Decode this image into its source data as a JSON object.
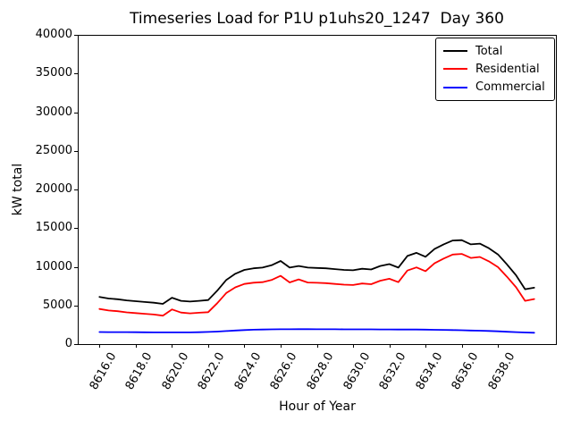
{
  "chart_data": {
    "type": "line",
    "title": "Timeseries Load for P1U p1uhs20_1247  Day 360",
    "xlabel": "Hour of Year",
    "ylabel": "kW total",
    "xlim": [
      8614.8,
      8641.2
    ],
    "ylim": [
      0,
      40000
    ],
    "grid": false,
    "legend": {
      "position": "upper right"
    },
    "xticks": {
      "rotation_deg": 60,
      "values": [
        8616,
        8618,
        8620,
        8622,
        8624,
        8626,
        8628,
        8630,
        8632,
        8634,
        8636,
        8638
      ],
      "labels": [
        "8616.0",
        "8618.0",
        "8620.0",
        "8622.0",
        "8624.0",
        "8626.0",
        "8628.0",
        "8630.0",
        "8632.0",
        "8634.0",
        "8636.0",
        "8638.0"
      ]
    },
    "yticks": {
      "values": [
        0,
        5000,
        10000,
        15000,
        20000,
        25000,
        30000,
        35000,
        40000
      ],
      "labels": [
        "0",
        "5000",
        "10000",
        "15000",
        "20000",
        "25000",
        "30000",
        "35000",
        "40000"
      ]
    },
    "x": [
      8616.0,
      8616.5,
      8617.0,
      8617.5,
      8618.0,
      8618.5,
      8619.0,
      8619.5,
      8620.0,
      8620.5,
      8621.0,
      8621.5,
      8622.0,
      8622.5,
      8623.0,
      8623.5,
      8624.0,
      8624.5,
      8625.0,
      8625.5,
      8626.0,
      8626.5,
      8627.0,
      8627.5,
      8628.0,
      8628.5,
      8629.0,
      8629.5,
      8630.0,
      8630.5,
      8631.0,
      8631.5,
      8632.0,
      8632.5,
      8633.0,
      8633.5,
      8634.0,
      8634.5,
      8635.0,
      8635.5,
      8636.0,
      8636.5,
      8637.0,
      8637.5,
      8638.0,
      8638.5,
      8639.0,
      8639.5,
      8640.0
    ],
    "series": [
      {
        "name": "Total",
        "color": "#000000",
        "values": [
          6100,
          5900,
          5800,
          5650,
          5550,
          5450,
          5350,
          5200,
          6000,
          5600,
          5500,
          5600,
          5700,
          6900,
          8300,
          9100,
          9600,
          9800,
          9900,
          10200,
          10750,
          9900,
          10100,
          9900,
          9850,
          9800,
          9700,
          9600,
          9550,
          9750,
          9650,
          10100,
          10350,
          9900,
          11400,
          11800,
          11300,
          12300,
          12900,
          13400,
          13450,
          12900,
          13000,
          12400,
          11600,
          10300,
          8900,
          7100,
          7300
        ]
      },
      {
        "name": "Residential",
        "color": "#ff0000",
        "values": [
          4540,
          4350,
          4250,
          4100,
          4010,
          3920,
          3830,
          3680,
          4480,
          4080,
          3980,
          4060,
          4130,
          5280,
          6610,
          7340,
          7780,
          7940,
          8010,
          8290,
          8830,
          7980,
          8370,
          7970,
          7930,
          7880,
          7780,
          7690,
          7640,
          7840,
          7740,
          8200,
          8450,
          8010,
          9510,
          9920,
          9430,
          10450,
          11060,
          11580,
          11660,
          11140,
          11270,
          10700,
          9950,
          8700,
          7350,
          5600,
          5830
        ]
      },
      {
        "name": "Commercial",
        "color": "#0000ff",
        "values": [
          1560,
          1550,
          1550,
          1550,
          1540,
          1530,
          1520,
          1520,
          1520,
          1520,
          1520,
          1540,
          1570,
          1620,
          1690,
          1760,
          1820,
          1860,
          1890,
          1910,
          1920,
          1920,
          1930,
          1930,
          1920,
          1920,
          1920,
          1910,
          1910,
          1910,
          1910,
          1900,
          1900,
          1890,
          1890,
          1880,
          1870,
          1850,
          1840,
          1820,
          1790,
          1760,
          1730,
          1700,
          1650,
          1600,
          1550,
          1500,
          1470
        ]
      }
    ]
  }
}
